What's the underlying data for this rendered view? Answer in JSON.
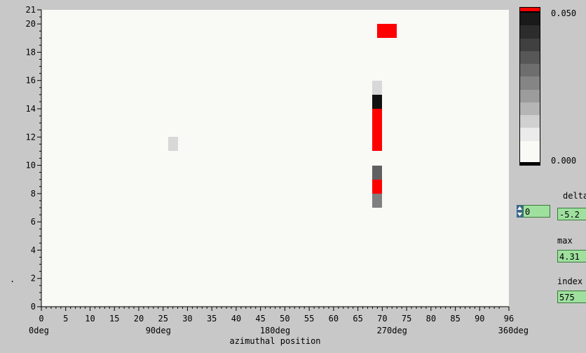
{
  "chart_data": {
    "type": "heatmap",
    "xlabel": "azimuthal position",
    "x_ticks": [
      "0",
      "5",
      "10",
      "15",
      "20",
      "25",
      "30",
      "35",
      "40",
      "45",
      "50",
      "55",
      "60",
      "65",
      "70",
      "75",
      "80",
      "85",
      "90",
      "96"
    ],
    "x_deg_labels": [
      "0deg",
      "90deg",
      "180deg",
      "270deg",
      "360deg"
    ],
    "y_ticks": [
      "0",
      "2",
      "4",
      "6",
      "8",
      "10",
      "12",
      "14",
      "16",
      "18",
      "20",
      "21"
    ],
    "xlim": [
      0,
      96
    ],
    "ylim": [
      0,
      21
    ],
    "colorbar": {
      "max_label": "0.050",
      "min_label": "0.000",
      "colors": [
        "#ff0000",
        "#1a1a1a",
        "#2c2c2c",
        "#404040",
        "#575757",
        "#6e6e6e",
        "#858585",
        "#9c9c9c",
        "#b5b5b5",
        "#d0d0d0",
        "#ebebeb",
        "#f9f9f5"
      ]
    },
    "cells": [
      {
        "x0": 26,
        "x1": 28,
        "y0": 11,
        "y1": 12,
        "color": "#d8d8d8"
      },
      {
        "x0": 68,
        "x1": 70,
        "y0": 15,
        "y1": 16,
        "color": "#d8d8d8"
      },
      {
        "x0": 68,
        "x1": 70,
        "y0": 14,
        "y1": 15,
        "color": "#111111"
      },
      {
        "x0": 68,
        "x1": 70,
        "y0": 11,
        "y1": 14,
        "color": "#ff0000"
      },
      {
        "x0": 68,
        "x1": 70,
        "y0": 9,
        "y1": 10,
        "color": "#606060"
      },
      {
        "x0": 68,
        "x1": 70,
        "y0": 8,
        "y1": 9,
        "color": "#ff0000"
      },
      {
        "x0": 68,
        "x1": 70,
        "y0": 7,
        "y1": 8,
        "color": "#808080"
      },
      {
        "x0": 69,
        "x1": 73,
        "y0": 19,
        "y1": 20,
        "color": "#ff0000"
      }
    ]
  },
  "controls": {
    "index_spinner_value": "0",
    "delta_label": "delta",
    "delta_value": "-5.2",
    "max_label": "max",
    "max_value": "4.31",
    "index_label": "index",
    "index_value": "575"
  },
  "side_mark": "."
}
